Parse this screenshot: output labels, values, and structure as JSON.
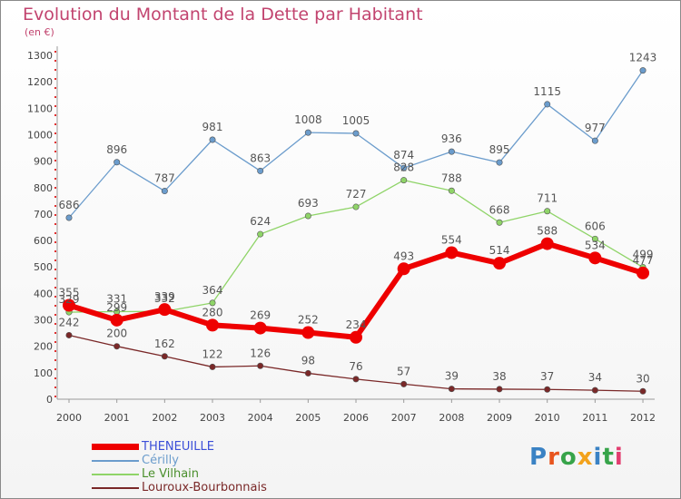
{
  "header": {
    "title": "Evolution du Montant de la Dette par Habitant",
    "subtitle": "(en €)"
  },
  "logo": {
    "letters": [
      "P",
      "r",
      "o",
      "x",
      "i",
      "t",
      "i"
    ],
    "colors": [
      "#3a82c4",
      "#e8551e",
      "#37a44a",
      "#f3a21b",
      "#3a82c4",
      "#37a44a",
      "#e23d6f"
    ]
  },
  "chart_data": {
    "type": "line",
    "title": "Evolution du Montant de la Dette par Habitant",
    "subtitle": "(en €)",
    "x": [
      "2000",
      "2001",
      "2002",
      "2003",
      "2004",
      "2005",
      "2006",
      "2007",
      "2008",
      "2009",
      "2010",
      "2011",
      "2012"
    ],
    "ylim": [
      0,
      1300
    ],
    "yticks": [
      0,
      100,
      200,
      300,
      400,
      500,
      600,
      700,
      800,
      900,
      1000,
      1100,
      1200,
      1300
    ],
    "grid": false,
    "legend_position": "bottom-left",
    "series": [
      {
        "name": "THENEUILLE",
        "color": "#ee0000",
        "values": [
          355,
          299,
          339,
          280,
          269,
          252,
          234,
          493,
          554,
          514,
          588,
          534,
          477
        ]
      },
      {
        "name": "Cérilly",
        "color": "#6b9ccc",
        "values": [
          686,
          896,
          787,
          981,
          863,
          1008,
          1005,
          874,
          936,
          895,
          1115,
          977,
          1243
        ]
      },
      {
        "name": "Le Vilhain",
        "color": "#8fd468",
        "values": [
          329,
          331,
          332,
          364,
          624,
          693,
          727,
          828,
          788,
          668,
          711,
          606,
          499
        ]
      },
      {
        "name": "Louroux-Bourbonnais",
        "color": "#7a2828",
        "values": [
          242,
          200,
          162,
          122,
          126,
          98,
          76,
          57,
          39,
          38,
          37,
          34,
          30
        ]
      }
    ]
  }
}
